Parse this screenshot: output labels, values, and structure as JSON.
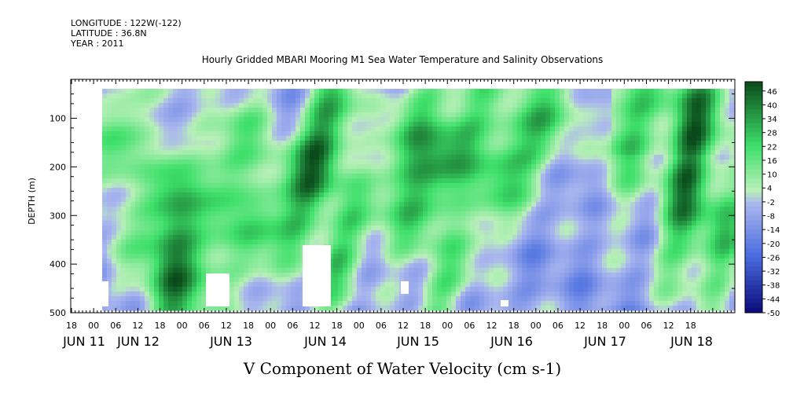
{
  "header": {
    "longitude": "LONGITUDE : 122W(-122)",
    "latitude": "LATITUDE : 36.8N",
    "year": "YEAR : 2011"
  },
  "chart_data": {
    "type": "heatmap",
    "title": "Hourly Gridded MBARI Mooring M1 Sea Water Temperature and Salinity Observations",
    "xlabel": "V Component of Water Velocity (cm s-1)",
    "ylabel": "DEPTH (m)",
    "x_hour_ticks": [
      "18",
      "00",
      "06",
      "12",
      "18",
      "00",
      "06",
      "12",
      "18",
      "00",
      "06",
      "12",
      "18",
      "00",
      "06",
      "12",
      "18",
      "00",
      "06",
      "12",
      "18",
      "00",
      "06",
      "12",
      "18",
      "00",
      "06",
      "12",
      "18"
    ],
    "x_day_labels": [
      "JUN 11",
      "JUN 12",
      "JUN 13",
      "JUN 14",
      "JUN 15",
      "JUN 16",
      "JUN 17",
      "JUN 18"
    ],
    "y_ticks": [
      100,
      200,
      300,
      400,
      500
    ],
    "ylim": [
      500,
      20
    ],
    "colorbar_ticks": [
      "46",
      "40",
      "34",
      "28",
      "22",
      "16",
      "10",
      "4",
      "-2",
      "-8",
      "-14",
      "-20",
      "-26",
      "-32",
      "-38",
      "-44",
      "-50"
    ],
    "colorbar_range": [
      -50,
      50
    ],
    "colors": {
      "neg_strong": "#0a0a7a",
      "neg_mid": "#4a6ee0",
      "neg_weak": "#aab6ee",
      "pos_weak": "#b8f0b8",
      "pos_mid": "#3ee06a",
      "pos_strong": "#0a4a1a"
    }
  }
}
